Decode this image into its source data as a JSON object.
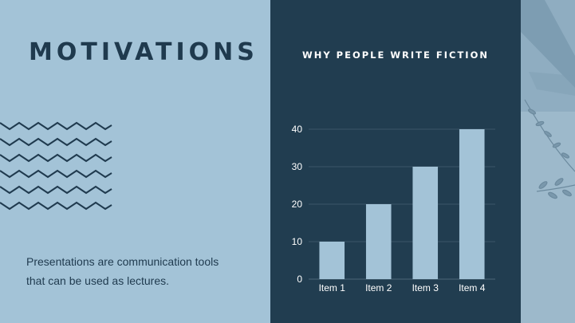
{
  "slide": {
    "title": "MOTIVATIONS",
    "body": "Presentations are communication tools that can be used as lectures.",
    "chart_title": "WHY PEOPLE WRITE FICTION"
  },
  "colors": {
    "light_bg": "#a3c3d7",
    "dark_bg": "#213d50",
    "accent": "#1f3a4e",
    "bar": "#a3c3d7"
  },
  "chart_data": {
    "type": "bar",
    "title": "WHY PEOPLE WRITE FICTION",
    "categories": [
      "Item 1",
      "Item 2",
      "Item 3",
      "Item 4"
    ],
    "values": [
      10,
      20,
      30,
      40
    ],
    "yticks": [
      0,
      10,
      20,
      30,
      40
    ],
    "ylim": [
      0,
      40
    ],
    "xlabel": "",
    "ylabel": "",
    "grid": true
  }
}
